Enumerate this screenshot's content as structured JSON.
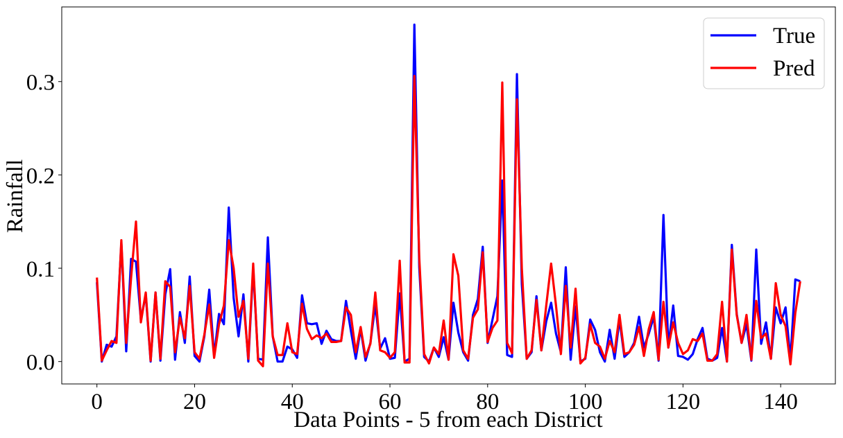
{
  "chart_data": {
    "type": "line",
    "title": "",
    "xlabel": "Data Points - 5 from each District",
    "ylabel": "Rainfall",
    "xlim": [
      -7.2,
      151.2
    ],
    "ylim": [
      -0.024,
      0.38
    ],
    "xticks": [
      0,
      20,
      40,
      60,
      80,
      100,
      120,
      140
    ],
    "yticks": [
      0.0,
      0.1,
      0.2,
      0.3
    ],
    "ytick_labels": [
      "0.0",
      "0.1",
      "0.2",
      "0.3"
    ],
    "grid": false,
    "legend": "top-right",
    "series": [
      {
        "name": "True",
        "color": "#0000ff",
        "values": [
          0.085,
          0.0,
          0.018,
          0.016,
          0.027,
          0.127,
          0.011,
          0.11,
          0.107,
          0.045,
          0.072,
          0.0,
          0.074,
          0.001,
          0.072,
          0.099,
          0.002,
          0.053,
          0.02,
          0.091,
          0.006,
          0.0,
          0.027,
          0.077,
          0.006,
          0.051,
          0.04,
          0.165,
          0.068,
          0.027,
          0.072,
          0.0,
          0.1,
          0.003,
          0.002,
          0.133,
          0.027,
          0.0,
          0.0,
          0.016,
          0.013,
          0.004,
          0.071,
          0.041,
          0.04,
          0.041,
          0.019,
          0.033,
          0.024,
          0.022,
          0.022,
          0.065,
          0.033,
          0.003,
          0.035,
          0.001,
          0.02,
          0.061,
          0.014,
          0.025,
          0.003,
          0.004,
          0.073,
          0.0,
          0.003,
          0.361,
          0.101,
          0.005,
          0.0,
          0.015,
          0.005,
          0.026,
          0.002,
          0.063,
          0.031,
          0.01,
          0.001,
          0.05,
          0.067,
          0.123,
          0.02,
          0.045,
          0.07,
          0.194,
          0.007,
          0.005,
          0.308,
          0.083,
          0.003,
          0.01,
          0.07,
          0.012,
          0.043,
          0.063,
          0.03,
          0.01,
          0.101,
          0.002,
          0.059,
          0.0,
          0.003,
          0.045,
          0.034,
          0.01,
          0.0,
          0.034,
          0.003,
          0.045,
          0.005,
          0.01,
          0.02,
          0.048,
          0.015,
          0.03,
          0.048,
          0.001,
          0.157,
          0.015,
          0.06,
          0.006,
          0.005,
          0.002,
          0.008,
          0.024,
          0.036,
          0.003,
          0.001,
          0.004,
          0.036,
          0.0,
          0.125,
          0.051,
          0.02,
          0.04,
          0.001,
          0.12,
          0.019,
          0.042,
          0.003,
          0.058,
          0.041,
          0.058,
          0.002,
          0.088,
          0.086
        ]
      },
      {
        "name": "Pred",
        "color": "#ff0000",
        "values": [
          0.09,
          0.001,
          0.012,
          0.022,
          0.02,
          0.13,
          0.02,
          0.09,
          0.15,
          0.042,
          0.074,
          0.001,
          0.074,
          0.003,
          0.086,
          0.08,
          0.01,
          0.047,
          0.025,
          0.081,
          0.01,
          0.003,
          0.029,
          0.061,
          0.004,
          0.04,
          0.06,
          0.13,
          0.1,
          0.048,
          0.065,
          0.003,
          0.105,
          0.001,
          -0.005,
          0.105,
          0.027,
          0.007,
          0.007,
          0.041,
          0.01,
          0.008,
          0.062,
          0.035,
          0.024,
          0.028,
          0.025,
          0.03,
          0.021,
          0.021,
          0.022,
          0.058,
          0.05,
          0.01,
          0.037,
          0.005,
          0.019,
          0.074,
          0.012,
          0.01,
          0.004,
          0.01,
          0.108,
          -0.001,
          -0.001,
          0.306,
          0.111,
          0.008,
          -0.002,
          0.015,
          0.008,
          0.044,
          0.002,
          0.115,
          0.092,
          0.012,
          0.003,
          0.047,
          0.056,
          0.117,
          0.021,
          0.036,
          0.044,
          0.299,
          0.02,
          0.009,
          0.281,
          0.1,
          0.003,
          0.012,
          0.066,
          0.012,
          0.06,
          0.105,
          0.06,
          0.008,
          0.081,
          0.015,
          0.078,
          -0.002,
          0.004,
          0.04,
          0.02,
          0.016,
          0.003,
          0.022,
          0.01,
          0.05,
          0.008,
          0.01,
          0.018,
          0.037,
          0.006,
          0.035,
          0.053,
          0.002,
          0.064,
          0.015,
          0.042,
          0.02,
          0.008,
          0.012,
          0.024,
          0.022,
          0.03,
          0.001,
          0.001,
          0.008,
          0.064,
          0.0,
          0.12,
          0.05,
          0.02,
          0.05,
          0.002,
          0.065,
          0.025,
          0.03,
          0.003,
          0.084,
          0.05,
          0.038,
          -0.003,
          0.052,
          0.086
        ]
      }
    ]
  }
}
